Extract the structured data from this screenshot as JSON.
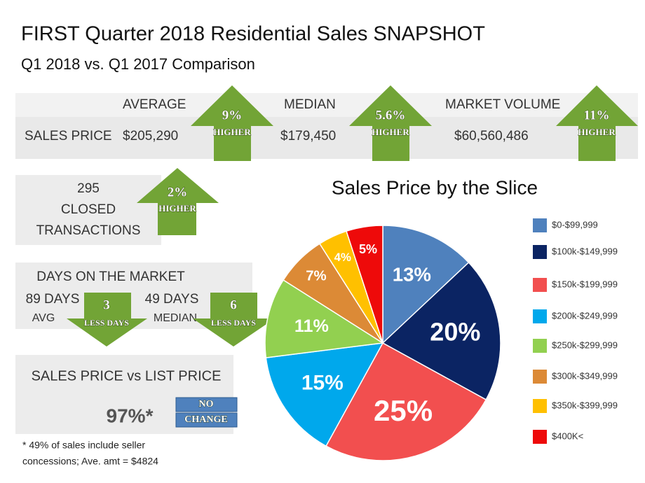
{
  "header": {
    "title": "FIRST Quarter 2018  Residential Sales SNAPSHOT",
    "subtitle": "Q1 2018 vs. Q1 2017 Comparison"
  },
  "sales_table": {
    "row_label": "SALES PRICE",
    "columns": [
      {
        "label": "AVERAGE",
        "value": "$205,290",
        "change": "9%",
        "direction": "HIGHER"
      },
      {
        "label": "MEDIAN",
        "value": "$179,450",
        "change": "5.6%",
        "direction": "HIGHER"
      },
      {
        "label": "MARKET VOLUME",
        "value": "$60,560,486",
        "change": "11%",
        "direction": "HIGHER"
      }
    ]
  },
  "closed": {
    "count": "295",
    "lines": [
      "CLOSED",
      "TRANSACTIONS"
    ],
    "change": "2%",
    "direction": "HIGHER"
  },
  "days_on_market": {
    "title": "DAYS ON THE MARKET",
    "items": [
      {
        "value": "89 DAYS",
        "label": "AVG",
        "change": "3",
        "direction": "LESS DAYS"
      },
      {
        "value": "49 DAYS",
        "label": "MEDIAN",
        "change": "6",
        "direction": "LESS DAYS"
      }
    ]
  },
  "sales_vs_list": {
    "title": "SALES PRICE  vs  LIST PRICE",
    "value": "97%*",
    "badge": [
      "NO",
      "CHANGE"
    ]
  },
  "footnote": [
    "* 49% of sales include seller",
    "concessions; Ave. amt = $4824"
  ],
  "chart_data": {
    "type": "pie",
    "title": "Sales Price by the Slice",
    "categories": [
      "$0-$99,999",
      "$100k-$149,999",
      "$150k-$199,999",
      "$200k-$249,999",
      "$250k-$299,999",
      "$300k-$349,999",
      "$350k-$399,999",
      "$400K<"
    ],
    "values": [
      13,
      20,
      25,
      15,
      11,
      7,
      4,
      5
    ],
    "value_labels": [
      "13%",
      "20%",
      "25%",
      "15%",
      "11%",
      "7%",
      "4%",
      "5%"
    ],
    "colors": [
      "#4f81bd",
      "#0b2463",
      "#f24f4f",
      "#00a8ec",
      "#92d050",
      "#dc8a36",
      "#ffc000",
      "#ee0a0a"
    ],
    "legend": "right"
  }
}
